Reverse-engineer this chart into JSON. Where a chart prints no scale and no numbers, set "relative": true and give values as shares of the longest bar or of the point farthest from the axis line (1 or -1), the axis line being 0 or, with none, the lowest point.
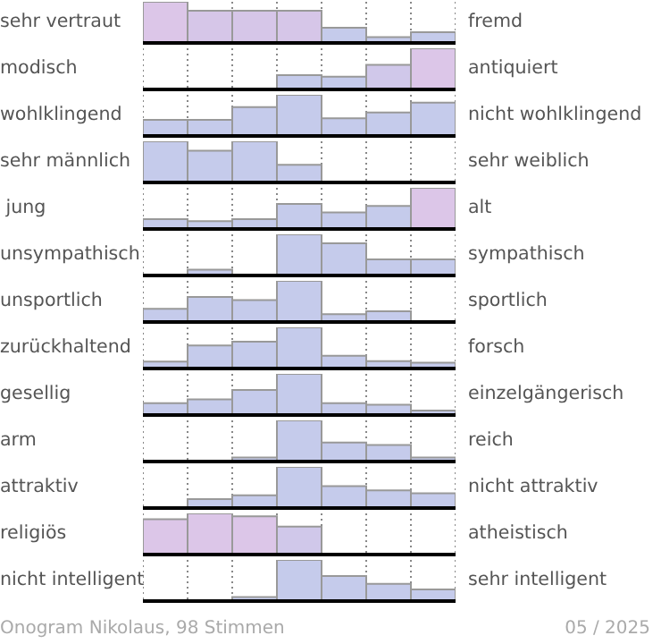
{
  "chart_data": [
    {
      "type": "bar",
      "relative": true,
      "ylabel": "sehr vertraut",
      "y2label": "fremd",
      "categories": [
        null,
        null,
        null,
        null,
        null,
        null,
        null
      ],
      "values": [
        1,
        0.78,
        0.78,
        0.78,
        0.37,
        0.14,
        0.26
      ],
      "colors": [
        "#dcc6e8",
        "#d6c6e8",
        "#d6c6e8",
        "#d6c6e8",
        "#c5cbeb",
        "#c5cbeb",
        "#c5cbeb"
      ],
      "grid": "x"
    },
    {
      "type": "bar",
      "relative": true,
      "ylabel": "modisch",
      "y2label": "antiquiert",
      "categories": [
        null,
        null,
        null,
        null,
        null,
        null,
        null
      ],
      "values": [
        0,
        0,
        null,
        0.35,
        0.31,
        0.6,
        1
      ],
      "colors": [
        "#c5cbeb",
        "#c5cbeb",
        "#c5cbeb",
        "#c5cbeb",
        "#c5cbeb",
        "#d0c8ea",
        "#dcc6e8"
      ],
      "grid": "x"
    },
    {
      "type": "bar",
      "relative": true,
      "ylabel": "wohlklingend",
      "y2label": "nicht wohlklingend",
      "categories": [
        null,
        null,
        null,
        null,
        null,
        null,
        null
      ],
      "values": [
        0.39,
        0.39,
        0.7,
        1,
        0.43,
        0.57,
        0.81
      ],
      "color": "#c5cbeb",
      "grid": "x"
    },
    {
      "type": "bar",
      "relative": true,
      "ylabel": "sehr männlich",
      "y2label": "sehr weiblich",
      "categories": [
        null,
        null,
        null,
        null,
        null,
        null,
        null
      ],
      "values": [
        1,
        0.77,
        1,
        0.43,
        0,
        0,
        0
      ],
      "color": "#c5cbeb",
      "grid": "x"
    },
    {
      "type": "bar",
      "relative": true,
      "ylabel": " jung",
      "y2label": "alt",
      "categories": [
        null,
        null,
        null,
        null,
        null,
        null,
        null
      ],
      "values": [
        0.24,
        0.19,
        0.24,
        0.61,
        0.4,
        0.56,
        1
      ],
      "colors": [
        "#c5cbeb",
        "#c5cbeb",
        "#c5cbeb",
        "#c5cbeb",
        "#c5cbeb",
        "#c5cbeb",
        "#dcc6e8"
      ],
      "grid": "x"
    },
    {
      "type": "bar",
      "relative": true,
      "ylabel": "unsympathisch",
      "y2label": "sympathisch",
      "categories": [
        null,
        null,
        null,
        null,
        null,
        null,
        null
      ],
      "values": [
        null,
        0.14,
        null,
        1,
        0.78,
        0.39,
        0.39
      ],
      "color": "#c5cbeb",
      "grid": "x"
    },
    {
      "type": "bar",
      "relative": true,
      "ylabel": "unsportlich",
      "y2label": "sportlich",
      "categories": [
        null,
        null,
        null,
        null,
        null,
        null,
        null
      ],
      "values": [
        0.32,
        0.61,
        0.53,
        1,
        0.19,
        0.26,
        0
      ],
      "color": "#c5cbeb",
      "grid": "x"
    },
    {
      "type": "bar",
      "relative": true,
      "ylabel": "zurückhaltend",
      "y2label": "forsch",
      "categories": [
        null,
        null,
        null,
        null,
        null,
        null,
        null
      ],
      "values": [
        0.17,
        0.56,
        0.65,
        1,
        0.31,
        0.18,
        0.14
      ],
      "color": "#c5cbeb",
      "grid": "x"
    },
    {
      "type": "bar",
      "relative": true,
      "ylabel": "gesellig",
      "y2label": "einzelgängerisch",
      "categories": [
        null,
        null,
        null,
        null,
        null,
        null,
        null
      ],
      "values": [
        0.29,
        0.38,
        0.61,
        1,
        0.29,
        0.25,
        0.11
      ],
      "color": "#c5cbeb",
      "grid": "x"
    },
    {
      "type": "bar",
      "relative": true,
      "ylabel": "arm",
      "y2label": "reich",
      "categories": [
        null,
        null,
        null,
        null,
        null,
        null,
        null
      ],
      "values": [
        0,
        0,
        0.1,
        1,
        0.46,
        0.4,
        0.1
      ],
      "color": "#c5cbeb",
      "grid": "x"
    },
    {
      "type": "bar",
      "relative": true,
      "ylabel": "attraktiv",
      "y2label": "nicht attraktiv",
      "categories": [
        null,
        null,
        null,
        null,
        null,
        null,
        null
      ],
      "values": [
        0,
        0.22,
        0.31,
        1,
        0.53,
        0.43,
        0.36
      ],
      "color": "#c5cbeb",
      "grid": "x"
    },
    {
      "type": "bar",
      "relative": true,
      "ylabel": "religiös",
      "y2label": "atheistisch",
      "categories": [
        null,
        null,
        null,
        null,
        null,
        null,
        null
      ],
      "values": [
        0.86,
        1,
        0.93,
        0.68,
        null,
        0,
        null
      ],
      "colors": [
        "#dcc6e8",
        "#dcc6e8",
        "#dcc6e8",
        "#d0c8ea",
        "#c5cbeb",
        "#c5cbeb",
        "#c5cbeb"
      ],
      "grid": "x"
    },
    {
      "type": "bar",
      "relative": true,
      "ylabel": "nicht intelligent",
      "y2label": "sehr intelligent",
      "categories": [
        null,
        null,
        null,
        null,
        null,
        null,
        null
      ],
      "values": [
        0,
        0,
        0.1,
        1,
        0.61,
        0.42,
        0.28
      ],
      "color": "#c5cbeb",
      "grid": "x",
      "annotations": [
        "Onogram Nikolaus, 98 Stimmen",
        "05 / 2025"
      ]
    }
  ]
}
